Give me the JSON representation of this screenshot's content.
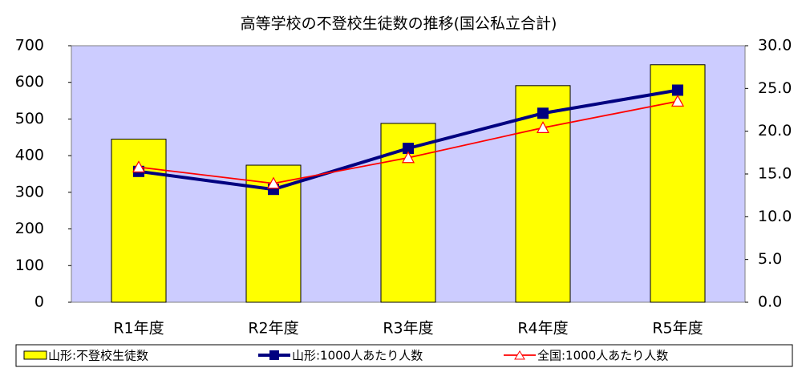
{
  "chart_data": {
    "type": "bar",
    "title": "高等学校の不登校生徒数の推移(国公私立合計)",
    "categories": [
      "R1年度",
      "R2年度",
      "R3年度",
      "R4年度",
      "R5年度"
    ],
    "series": [
      {
        "name": "山形:不登校生徒数",
        "type": "bar",
        "color": "#ffff00",
        "values": [
          445,
          374,
          488,
          591,
          648
        ]
      },
      {
        "name": "山形:1000人あたり人数",
        "type": "line",
        "axis": "y2",
        "color": "#000080",
        "marker": "square",
        "values": [
          15.3,
          13.2,
          18.0,
          22.1,
          24.8
        ]
      },
      {
        "name": "全国:1000人あたり人数",
        "type": "line",
        "axis": "y2",
        "color": "#ff0000",
        "marker": "triangle",
        "values": [
          15.8,
          13.9,
          16.9,
          20.4,
          23.5
        ]
      }
    ],
    "ylim": [
      0,
      700
    ],
    "yticks": [
      0,
      100,
      200,
      300,
      400,
      500,
      600,
      700
    ],
    "y2lim": [
      0,
      30
    ],
    "y2ticks": [
      {
        "value": 0,
        "label": "0.0"
      },
      {
        "value": 5,
        "label": "5.0"
      },
      {
        "value": 10,
        "label": "10.0"
      },
      {
        "value": 15,
        "label": "15.0"
      },
      {
        "value": 20,
        "label": "20.0"
      },
      {
        "value": 25,
        "label": "25.0"
      },
      {
        "value": 30,
        "label": "30.0"
      }
    ],
    "plot_background": "#ccccff",
    "legend": "bottom"
  }
}
